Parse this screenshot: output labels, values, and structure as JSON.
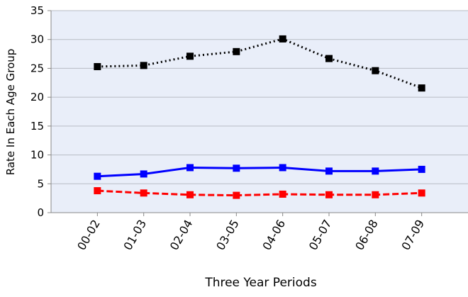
{
  "chart_data": {
    "type": "line",
    "x_label": "Three Year Periods",
    "y_label": "Rate In Each Age Group",
    "categories": [
      "00-02",
      "01-03",
      "02-04",
      "03-05",
      "04-06",
      "05-07",
      "06-08",
      "07-09"
    ],
    "series": [
      {
        "color": "#000000",
        "line_style": "dotted",
        "values": [
          25.3,
          25.5,
          27.1,
          27.9,
          30.1,
          26.7,
          24.6,
          21.6
        ]
      },
      {
        "color": "#0000ff",
        "line_style": "solid",
        "values": [
          6.3,
          6.7,
          7.8,
          7.7,
          7.8,
          7.2,
          7.2,
          7.5
        ]
      },
      {
        "color": "#ff0000",
        "line_style": "dashed",
        "values": [
          3.8,
          3.4,
          3.1,
          3.0,
          3.2,
          3.1,
          3.1,
          3.4
        ]
      }
    ],
    "ylim": [
      0,
      35
    ],
    "yticks": [
      0,
      5,
      10,
      15,
      20,
      25,
      30,
      35
    ],
    "grid": true
  }
}
